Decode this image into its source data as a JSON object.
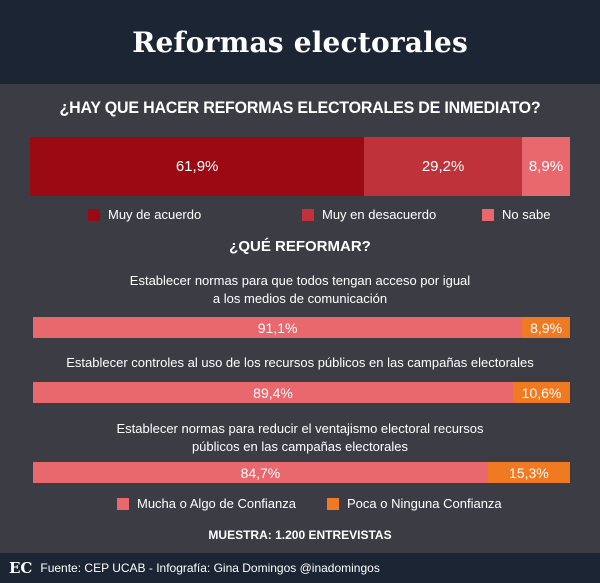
{
  "header": {
    "title": "Reformas electorales"
  },
  "colors": {
    "acuerdo": "#9b0a12",
    "desacuerdo": "#c0323a",
    "no_sabe": "#e8686e",
    "confianza": "#e8686e",
    "poca": "#f07a22"
  },
  "chart_data": [
    {
      "type": "bar",
      "title": "¿HAY QUE HACER REFORMAS ELECTORALES DE INMEDIATO?",
      "stacked": true,
      "orientation": "horizontal",
      "series": [
        {
          "name": "Muy de acuerdo",
          "values": [
            61.9
          ],
          "label": "61,9%"
        },
        {
          "name": "Muy en desacuerdo",
          "values": [
            29.2
          ],
          "label": "29,2%"
        },
        {
          "name": "No sabe",
          "values": [
            8.9
          ],
          "label": "8,9%"
        }
      ],
      "legend_position": "bottom"
    },
    {
      "type": "bar",
      "title": "¿QUÉ REFORMAR?",
      "stacked": true,
      "orientation": "horizontal",
      "categories": [
        [
          "Establecer normas para que todos tengan acceso por igual",
          "a los medios de comunicación"
        ],
        [
          "Establecer controles al uso de los recursos públicos en las campañas electorales"
        ],
        [
          "Establecer normas para reducir el ventajismo electoral recursos",
          "públicos en las campañas electorales"
        ]
      ],
      "series": [
        {
          "name": "Mucha o Algo de Confianza",
          "values": [
            91.1,
            89.4,
            84.7
          ],
          "labels": [
            "91,1%",
            "89,4%",
            "84,7%"
          ]
        },
        {
          "name": "Poca o Ninguna Confianza",
          "values": [
            8.9,
            10.6,
            15.3
          ],
          "labels": [
            "8,9%",
            "10,6%",
            "15,3%"
          ]
        }
      ],
      "legend_position": "bottom"
    }
  ],
  "sample": "MUESTRA: 1.200 ENTREVISTAS",
  "footer": {
    "logo": "EC",
    "source": "Fuente: CEP UCAB - Infografía: Gina Domingos @inadomingos"
  }
}
